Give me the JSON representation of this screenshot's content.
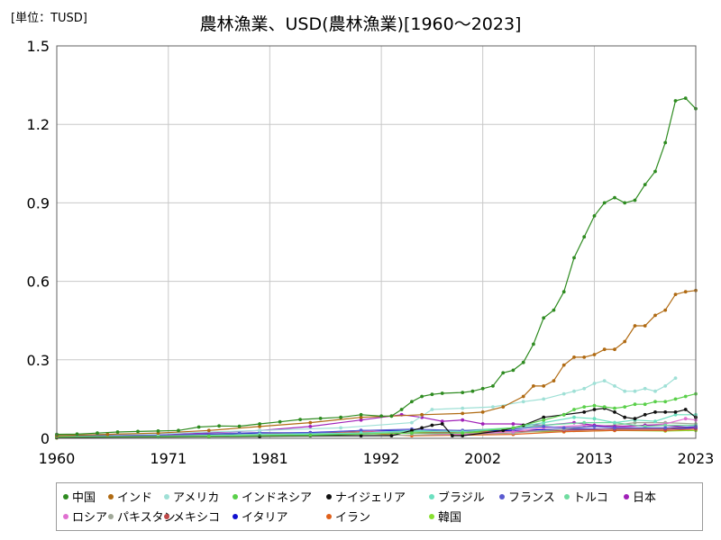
{
  "unit_label": "[単位：TUSD]",
  "title": "農林漁業、USD(農林漁業)[1960～2023]",
  "chart_data": {
    "type": "line",
    "title": "農林漁業、USD(農林漁業)[1960～2023]",
    "ylabel": "[単位：TUSD]",
    "xlabel": "",
    "xlim": [
      1960,
      2023
    ],
    "ylim": [
      0,
      1.5
    ],
    "x_ticks": [
      "1960",
      "1971",
      "1981",
      "1992",
      "2002",
      "2013",
      "2023"
    ],
    "y_ticks": [
      "0",
      "0.3",
      "0.6",
      "0.9",
      "1.2",
      "1.5"
    ],
    "grid": true,
    "legend_position": "bottom",
    "series": [
      {
        "name": "中国",
        "color": "#2e8b20",
        "points": [
          [
            1960,
            0.015
          ],
          [
            1962,
            0.016
          ],
          [
            1964,
            0.02
          ],
          [
            1966,
            0.024
          ],
          [
            1968,
            0.026
          ],
          [
            1970,
            0.028
          ],
          [
            1972,
            0.03
          ],
          [
            1974,
            0.043
          ],
          [
            1976,
            0.047
          ],
          [
            1978,
            0.046
          ],
          [
            1980,
            0.055
          ],
          [
            1982,
            0.063
          ],
          [
            1984,
            0.072
          ],
          [
            1986,
            0.076
          ],
          [
            1988,
            0.08
          ],
          [
            1990,
            0.09
          ],
          [
            1992,
            0.085
          ],
          [
            1993,
            0.085
          ],
          [
            1994,
            0.11
          ],
          [
            1995,
            0.14
          ],
          [
            1996,
            0.16
          ],
          [
            1997,
            0.168
          ],
          [
            1998,
            0.172
          ],
          [
            2000,
            0.175
          ],
          [
            2001,
            0.18
          ],
          [
            2002,
            0.19
          ],
          [
            2003,
            0.2
          ],
          [
            2004,
            0.25
          ],
          [
            2005,
            0.26
          ],
          [
            2006,
            0.29
          ],
          [
            2007,
            0.36
          ],
          [
            2008,
            0.46
          ],
          [
            2009,
            0.49
          ],
          [
            2010,
            0.56
          ],
          [
            2011,
            0.69
          ],
          [
            2012,
            0.77
          ],
          [
            2013,
            0.85
          ],
          [
            2014,
            0.9
          ],
          [
            2015,
            0.92
          ],
          [
            2016,
            0.9
          ],
          [
            2017,
            0.91
          ],
          [
            2018,
            0.97
          ],
          [
            2019,
            1.02
          ],
          [
            2020,
            1.13
          ],
          [
            2021,
            1.29
          ],
          [
            2022,
            1.3
          ],
          [
            2023,
            1.26
          ]
        ]
      },
      {
        "name": "インド",
        "color": "#b06a12",
        "points": [
          [
            1960,
            0.01
          ],
          [
            1965,
            0.015
          ],
          [
            1970,
            0.02
          ],
          [
            1975,
            0.03
          ],
          [
            1980,
            0.045
          ],
          [
            1985,
            0.06
          ],
          [
            1990,
            0.08
          ],
          [
            1993,
            0.085
          ],
          [
            1996,
            0.09
          ],
          [
            2000,
            0.095
          ],
          [
            2002,
            0.1
          ],
          [
            2004,
            0.12
          ],
          [
            2006,
            0.16
          ],
          [
            2007,
            0.2
          ],
          [
            2008,
            0.2
          ],
          [
            2009,
            0.22
          ],
          [
            2010,
            0.28
          ],
          [
            2011,
            0.31
          ],
          [
            2012,
            0.31
          ],
          [
            2013,
            0.32
          ],
          [
            2014,
            0.34
          ],
          [
            2015,
            0.34
          ],
          [
            2016,
            0.37
          ],
          [
            2017,
            0.43
          ],
          [
            2018,
            0.43
          ],
          [
            2019,
            0.47
          ],
          [
            2020,
            0.49
          ],
          [
            2021,
            0.55
          ],
          [
            2022,
            0.56
          ],
          [
            2023,
            0.565
          ]
        ]
      },
      {
        "name": "アメリカ",
        "color": "#9fe0d6",
        "points": [
          [
            1960,
            0.012
          ],
          [
            1970,
            0.018
          ],
          [
            1980,
            0.03
          ],
          [
            1988,
            0.04
          ],
          [
            1995,
            0.06
          ],
          [
            1997,
            0.11
          ],
          [
            2000,
            0.115
          ],
          [
            2003,
            0.12
          ],
          [
            2006,
            0.14
          ],
          [
            2008,
            0.15
          ],
          [
            2010,
            0.17
          ],
          [
            2011,
            0.18
          ],
          [
            2012,
            0.19
          ],
          [
            2013,
            0.21
          ],
          [
            2014,
            0.22
          ],
          [
            2015,
            0.2
          ],
          [
            2016,
            0.18
          ],
          [
            2017,
            0.18
          ],
          [
            2018,
            0.19
          ],
          [
            2019,
            0.18
          ],
          [
            2020,
            0.2
          ],
          [
            2021,
            0.23
          ]
        ]
      },
      {
        "name": "インドネシア",
        "color": "#5ad04a",
        "points": [
          [
            1960,
            0.005
          ],
          [
            1975,
            0.008
          ],
          [
            1985,
            0.012
          ],
          [
            1995,
            0.02
          ],
          [
            2000,
            0.02
          ],
          [
            2005,
            0.04
          ],
          [
            2008,
            0.07
          ],
          [
            2010,
            0.09
          ],
          [
            2011,
            0.11
          ],
          [
            2012,
            0.12
          ],
          [
            2013,
            0.125
          ],
          [
            2014,
            0.12
          ],
          [
            2015,
            0.115
          ],
          [
            2016,
            0.12
          ],
          [
            2017,
            0.13
          ],
          [
            2018,
            0.13
          ],
          [
            2019,
            0.14
          ],
          [
            2020,
            0.14
          ],
          [
            2021,
            0.15
          ],
          [
            2022,
            0.16
          ],
          [
            2023,
            0.17
          ]
        ]
      },
      {
        "name": "ナイジェリア",
        "color": "#101010",
        "points": [
          [
            1960,
            0.003
          ],
          [
            1980,
            0.008
          ],
          [
            1985,
            0.01
          ],
          [
            1990,
            0.01
          ],
          [
            1993,
            0.01
          ],
          [
            1995,
            0.03
          ],
          [
            1996,
            0.04
          ],
          [
            1997,
            0.05
          ],
          [
            1998,
            0.055
          ],
          [
            1999,
            0.01
          ],
          [
            2000,
            0.01
          ],
          [
            2004,
            0.03
          ],
          [
            2006,
            0.05
          ],
          [
            2008,
            0.08
          ],
          [
            2010,
            0.09
          ],
          [
            2012,
            0.1
          ],
          [
            2013,
            0.11
          ],
          [
            2014,
            0.115
          ],
          [
            2015,
            0.1
          ],
          [
            2016,
            0.08
          ],
          [
            2017,
            0.075
          ],
          [
            2018,
            0.09
          ],
          [
            2019,
            0.1
          ],
          [
            2020,
            0.1
          ],
          [
            2021,
            0.1
          ],
          [
            2022,
            0.11
          ],
          [
            2023,
            0.08
          ]
        ]
      },
      {
        "name": "ブラジル",
        "color": "#6ce0c0",
        "points": [
          [
            1960,
            0.005
          ],
          [
            1970,
            0.008
          ],
          [
            1980,
            0.015
          ],
          [
            1990,
            0.02
          ],
          [
            1995,
            0.03
          ],
          [
            2000,
            0.025
          ],
          [
            2005,
            0.04
          ],
          [
            2008,
            0.06
          ],
          [
            2011,
            0.08
          ],
          [
            2013,
            0.075
          ],
          [
            2015,
            0.06
          ],
          [
            2017,
            0.07
          ],
          [
            2019,
            0.065
          ],
          [
            2021,
            0.09
          ],
          [
            2023,
            0.09
          ]
        ]
      },
      {
        "name": "フランス",
        "color": "#5a5ad0",
        "points": [
          [
            1960,
            0.008
          ],
          [
            1970,
            0.012
          ],
          [
            1978,
            0.02
          ],
          [
            1980,
            0.022
          ],
          [
            1985,
            0.02
          ],
          [
            1990,
            0.03
          ],
          [
            1995,
            0.035
          ],
          [
            2000,
            0.03
          ],
          [
            2005,
            0.035
          ],
          [
            2008,
            0.045
          ],
          [
            2010,
            0.04
          ],
          [
            2013,
            0.045
          ],
          [
            2015,
            0.04
          ],
          [
            2020,
            0.04
          ],
          [
            2023,
            0.045
          ]
        ]
      },
      {
        "name": "トルコ",
        "color": "#70dca0",
        "points": [
          [
            1960,
            0.004
          ],
          [
            1970,
            0.006
          ],
          [
            1980,
            0.01
          ],
          [
            1990,
            0.02
          ],
          [
            1995,
            0.025
          ],
          [
            2000,
            0.03
          ],
          [
            2005,
            0.04
          ],
          [
            2008,
            0.05
          ],
          [
            2012,
            0.06
          ],
          [
            2015,
            0.06
          ],
          [
            2018,
            0.045
          ],
          [
            2020,
            0.05
          ],
          [
            2023,
            0.05
          ]
        ]
      },
      {
        "name": "日本",
        "color": "#a020b8",
        "points": [
          [
            1960,
            0.006
          ],
          [
            1970,
            0.012
          ],
          [
            1980,
            0.03
          ],
          [
            1985,
            0.045
          ],
          [
            1990,
            0.07
          ],
          [
            1994,
            0.09
          ],
          [
            1996,
            0.08
          ],
          [
            1998,
            0.065
          ],
          [
            2000,
            0.07
          ],
          [
            2002,
            0.055
          ],
          [
            2005,
            0.055
          ],
          [
            2008,
            0.05
          ],
          [
            2011,
            0.06
          ],
          [
            2013,
            0.05
          ],
          [
            2015,
            0.045
          ],
          [
            2018,
            0.05
          ],
          [
            2020,
            0.05
          ],
          [
            2023,
            0.04
          ]
        ]
      },
      {
        "name": "ロシア",
        "color": "#e070d0",
        "points": [
          [
            1990,
            0.03
          ],
          [
            1995,
            0.02
          ],
          [
            2000,
            0.015
          ],
          [
            2005,
            0.025
          ],
          [
            2008,
            0.04
          ],
          [
            2012,
            0.05
          ],
          [
            2015,
            0.04
          ],
          [
            2018,
            0.05
          ],
          [
            2020,
            0.055
          ],
          [
            2022,
            0.075
          ],
          [
            2023,
            0.07
          ]
        ]
      },
      {
        "name": "パキスタン",
        "color": "#a0a898",
        "points": [
          [
            1960,
            0.002
          ],
          [
            1980,
            0.006
          ],
          [
            1990,
            0.01
          ],
          [
            2000,
            0.015
          ],
          [
            2005,
            0.02
          ],
          [
            2010,
            0.035
          ],
          [
            2013,
            0.045
          ],
          [
            2015,
            0.05
          ],
          [
            2017,
            0.06
          ],
          [
            2020,
            0.06
          ],
          [
            2023,
            0.055
          ]
        ]
      },
      {
        "name": "メキシコ",
        "color": "#c04848",
        "points": [
          [
            1960,
            0.003
          ],
          [
            1980,
            0.015
          ],
          [
            1985,
            0.02
          ],
          [
            1990,
            0.025
          ],
          [
            1995,
            0.02
          ],
          [
            2000,
            0.025
          ],
          [
            2005,
            0.025
          ],
          [
            2010,
            0.03
          ],
          [
            2015,
            0.035
          ],
          [
            2020,
            0.035
          ],
          [
            2023,
            0.045
          ]
        ]
      },
      {
        "name": "イタリア",
        "color": "#1010d0",
        "points": [
          [
            1960,
            0.006
          ],
          [
            1970,
            0.01
          ],
          [
            1980,
            0.02
          ],
          [
            1985,
            0.022
          ],
          [
            1990,
            0.03
          ],
          [
            1995,
            0.03
          ],
          [
            2000,
            0.028
          ],
          [
            2005,
            0.03
          ],
          [
            2010,
            0.035
          ],
          [
            2015,
            0.035
          ],
          [
            2020,
            0.035
          ],
          [
            2023,
            0.04
          ]
        ]
      },
      {
        "name": "イラン",
        "color": "#e0601a",
        "points": [
          [
            1960,
            0.002
          ],
          [
            1975,
            0.006
          ],
          [
            1980,
            0.01
          ],
          [
            1985,
            0.015
          ],
          [
            1990,
            0.02
          ],
          [
            1995,
            0.01
          ],
          [
            2000,
            0.012
          ],
          [
            2005,
            0.015
          ],
          [
            2010,
            0.025
          ],
          [
            2015,
            0.03
          ],
          [
            2020,
            0.03
          ],
          [
            2023,
            0.035
          ]
        ]
      },
      {
        "name": "韓国",
        "color": "#88e030",
        "points": [
          [
            1960,
            0.001
          ],
          [
            1970,
            0.004
          ],
          [
            1980,
            0.01
          ],
          [
            1990,
            0.02
          ],
          [
            1995,
            0.025
          ],
          [
            2000,
            0.02
          ],
          [
            2005,
            0.025
          ],
          [
            2010,
            0.025
          ],
          [
            2015,
            0.03
          ],
          [
            2020,
            0.028
          ],
          [
            2023,
            0.03
          ]
        ]
      }
    ]
  }
}
